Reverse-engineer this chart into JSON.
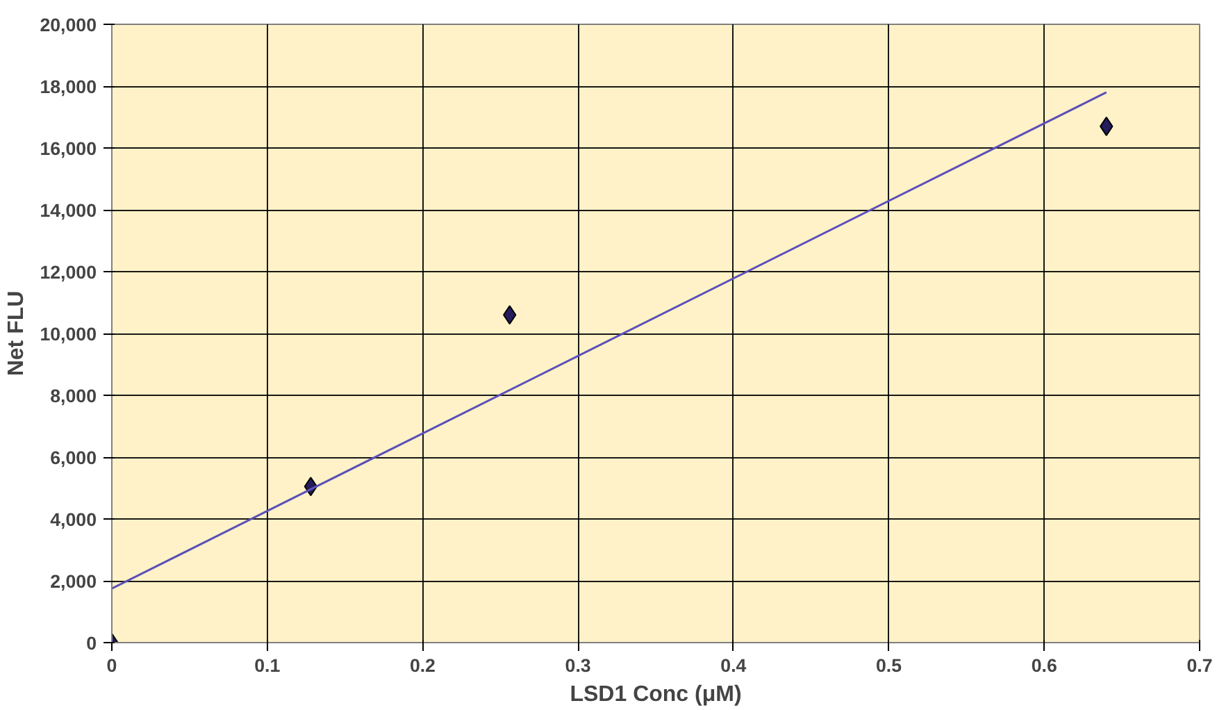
{
  "chart_data": {
    "type": "scatter",
    "xlabel": "LSD1 Conc (μM)",
    "ylabel": "Net FLU",
    "x": [
      0,
      0.128,
      0.256,
      0.64
    ],
    "series": [
      {
        "color": "#241c5c",
        "values": [
          0,
          5050,
          10600,
          16700
        ],
        "marker": "diamond"
      },
      {
        "type": "line",
        "color": "#5b50b8",
        "x": [
          0,
          0.64
        ],
        "values": [
          1750,
          17800
        ],
        "line_style": "solid"
      }
    ],
    "xlim": [
      0,
      0.7
    ],
    "xticks": [
      0,
      0.1,
      0.2,
      0.3,
      0.4,
      0.5,
      0.6,
      0.7
    ],
    "ylim": [
      0,
      20000
    ],
    "yticks": [
      {
        "value": 0,
        "label": "0"
      },
      {
        "value": 2000,
        "label": "2,000"
      },
      {
        "value": 4000,
        "label": "4,000"
      },
      {
        "value": 6000,
        "label": "6,000"
      },
      {
        "value": 8000,
        "label": "8,000"
      },
      {
        "value": 10000,
        "label": "10,000"
      },
      {
        "value": 12000,
        "label": "12,000"
      },
      {
        "value": 14000,
        "label": "14,000"
      },
      {
        "value": 16000,
        "label": "16,000"
      },
      {
        "value": 18000,
        "label": "18,000"
      },
      {
        "value": 20000,
        "label": "20,000"
      }
    ],
    "grid": true
  }
}
